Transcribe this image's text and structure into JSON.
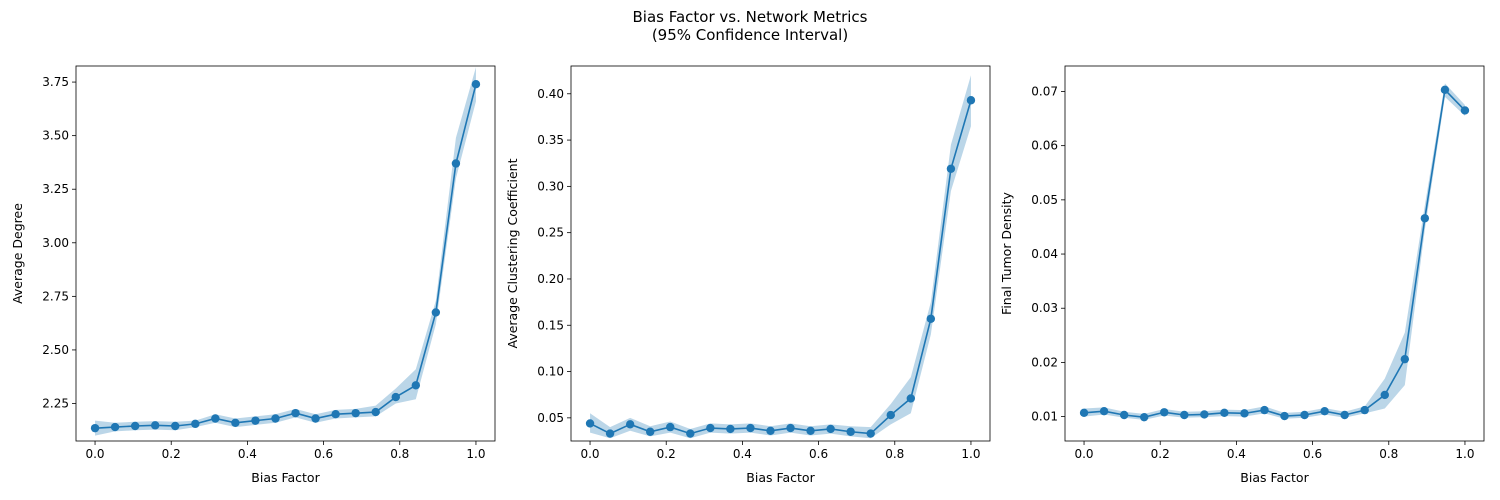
{
  "figure": {
    "title": "Bias Factor vs. Network Metrics\n(95% Confidence Interval)"
  },
  "colors": {
    "line": "#1f77b4",
    "band": "#1f77b4"
  },
  "chart_data": [
    {
      "type": "line",
      "xlabel": "Bias Factor",
      "ylabel": "Average Degree",
      "xlim": [
        -0.05,
        1.05
      ],
      "ylim": [
        2.075,
        3.825
      ],
      "xticks": [
        0.0,
        0.2,
        0.4,
        0.6,
        0.8,
        1.0
      ],
      "xtick_labels": [
        "0.0",
        "0.2",
        "0.4",
        "0.6",
        "0.8",
        "1.0"
      ],
      "yticks": [
        2.25,
        2.5,
        2.75,
        3.0,
        3.25,
        3.5,
        3.75
      ],
      "ytick_labels": [
        "2.25",
        "2.50",
        "2.75",
        "3.00",
        "3.25",
        "3.50",
        "3.75"
      ],
      "grid": false,
      "x": [
        0.0,
        0.0526,
        0.1053,
        0.1579,
        0.2105,
        0.2632,
        0.3158,
        0.3684,
        0.4211,
        0.4737,
        0.5263,
        0.5789,
        0.6316,
        0.6842,
        0.7368,
        0.7895,
        0.8421,
        0.8947,
        0.9474,
        1.0
      ],
      "values": [
        2.135,
        2.14,
        2.145,
        2.148,
        2.145,
        2.155,
        2.18,
        2.16,
        2.17,
        2.18,
        2.205,
        2.18,
        2.2,
        2.205,
        2.21,
        2.28,
        2.335,
        2.675,
        3.37,
        3.74
      ],
      "ci_lower": [
        2.1,
        2.12,
        2.125,
        2.128,
        2.125,
        2.14,
        2.16,
        2.14,
        2.15,
        2.16,
        2.185,
        2.16,
        2.18,
        2.185,
        2.19,
        2.25,
        2.27,
        2.62,
        3.3,
        3.66
      ],
      "ci_upper": [
        2.17,
        2.16,
        2.165,
        2.168,
        2.165,
        2.17,
        2.2,
        2.18,
        2.19,
        2.2,
        2.225,
        2.2,
        2.22,
        2.225,
        2.24,
        2.32,
        2.41,
        2.73,
        3.49,
        3.82
      ]
    },
    {
      "type": "line",
      "xlabel": "Bias Factor",
      "ylabel": "Average Clustering Coefficient",
      "xlim": [
        -0.05,
        1.05
      ],
      "ylim": [
        0.025,
        0.43
      ],
      "xticks": [
        0.0,
        0.2,
        0.4,
        0.6,
        0.8,
        1.0
      ],
      "xtick_labels": [
        "0.0",
        "0.2",
        "0.4",
        "0.6",
        "0.8",
        "1.0"
      ],
      "yticks": [
        0.05,
        0.1,
        0.15,
        0.2,
        0.25,
        0.3,
        0.35,
        0.4
      ],
      "ytick_labels": [
        "0.05",
        "0.10",
        "0.15",
        "0.20",
        "0.25",
        "0.30",
        "0.35",
        "0.40"
      ],
      "grid": false,
      "x": [
        0.0,
        0.0526,
        0.1053,
        0.1579,
        0.2105,
        0.2632,
        0.3158,
        0.3684,
        0.4211,
        0.4737,
        0.5263,
        0.5789,
        0.6316,
        0.6842,
        0.7368,
        0.7895,
        0.8421,
        0.8947,
        0.9474,
        1.0
      ],
      "values": [
        0.044,
        0.033,
        0.043,
        0.035,
        0.04,
        0.033,
        0.039,
        0.038,
        0.039,
        0.036,
        0.039,
        0.036,
        0.038,
        0.035,
        0.033,
        0.053,
        0.071,
        0.157,
        0.319,
        0.393
      ],
      "ci_lower": [
        0.034,
        0.028,
        0.036,
        0.03,
        0.034,
        0.028,
        0.034,
        0.033,
        0.034,
        0.031,
        0.034,
        0.031,
        0.033,
        0.03,
        0.028,
        0.043,
        0.055,
        0.14,
        0.295,
        0.365
      ],
      "ci_upper": [
        0.055,
        0.04,
        0.05,
        0.041,
        0.046,
        0.038,
        0.044,
        0.043,
        0.044,
        0.041,
        0.044,
        0.041,
        0.043,
        0.041,
        0.04,
        0.065,
        0.094,
        0.175,
        0.345,
        0.42
      ]
    },
    {
      "type": "line",
      "xlabel": "Bias Factor",
      "ylabel": "Final Tumor Density",
      "xlim": [
        -0.05,
        1.05
      ],
      "ylim": [
        0.0055,
        0.0747
      ],
      "xticks": [
        0.0,
        0.2,
        0.4,
        0.6,
        0.8,
        1.0
      ],
      "xtick_labels": [
        "0.0",
        "0.2",
        "0.4",
        "0.6",
        "0.8",
        "1.0"
      ],
      "yticks": [
        0.01,
        0.02,
        0.03,
        0.04,
        0.05,
        0.06,
        0.07
      ],
      "ytick_labels": [
        "0.01",
        "0.02",
        "0.03",
        "0.04",
        "0.05",
        "0.06",
        "0.07"
      ],
      "grid": false,
      "x": [
        0.0,
        0.0526,
        0.1053,
        0.1579,
        0.2105,
        0.2632,
        0.3158,
        0.3684,
        0.4211,
        0.4737,
        0.5263,
        0.5789,
        0.6316,
        0.6842,
        0.7368,
        0.7895,
        0.8421,
        0.8947,
        0.9474,
        1.0
      ],
      "values": [
        0.0107,
        0.011,
        0.0103,
        0.0099,
        0.0108,
        0.0103,
        0.0104,
        0.0107,
        0.0106,
        0.0112,
        0.0101,
        0.0103,
        0.011,
        0.0103,
        0.0112,
        0.014,
        0.0206,
        0.0466,
        0.0703,
        0.0665
      ],
      "ci_lower": [
        0.01,
        0.0104,
        0.0098,
        0.0094,
        0.0102,
        0.0098,
        0.0099,
        0.0101,
        0.01,
        0.0106,
        0.0096,
        0.0098,
        0.0104,
        0.0098,
        0.0106,
        0.0115,
        0.0158,
        0.0445,
        0.069,
        0.0655
      ],
      "ci_upper": [
        0.0115,
        0.0117,
        0.0109,
        0.0105,
        0.0114,
        0.0109,
        0.011,
        0.0113,
        0.0112,
        0.0119,
        0.0107,
        0.0109,
        0.0116,
        0.0109,
        0.0119,
        0.017,
        0.0255,
        0.049,
        0.0715,
        0.0675
      ]
    }
  ]
}
